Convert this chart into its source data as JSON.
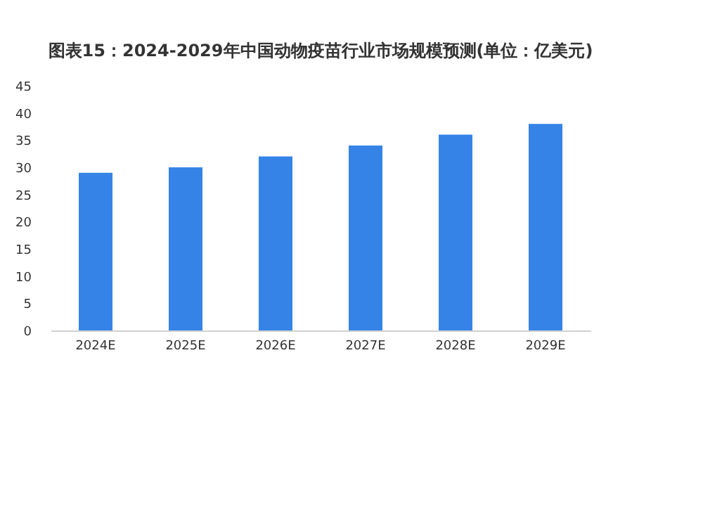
{
  "chart_data": {
    "type": "bar",
    "title": "图表15：2024-2029年中国动物疫苗行业市场规模预测(单位：亿美元)",
    "categories": [
      "2024E",
      "2025E",
      "2026E",
      "2027E",
      "2028E",
      "2029E"
    ],
    "values": [
      29,
      30,
      32,
      34,
      36,
      38
    ],
    "color": "#3583e6",
    "ylim": [
      0,
      45
    ],
    "yticks": [
      0,
      5,
      10,
      15,
      20,
      25,
      30,
      35,
      40,
      45
    ],
    "grid": false
  }
}
